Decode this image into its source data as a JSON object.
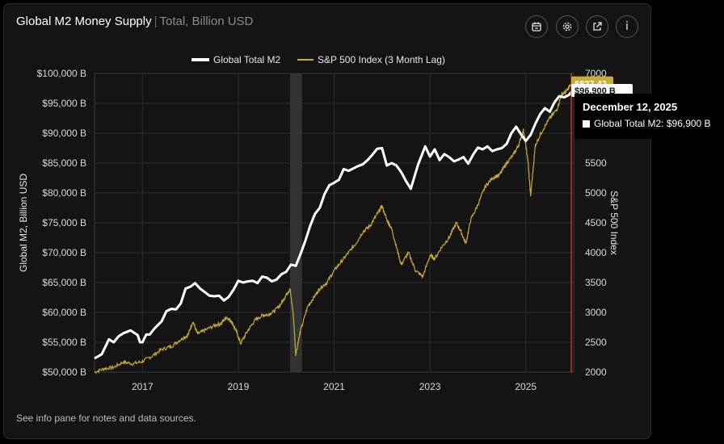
{
  "header": {
    "title": "Global M2 Money Supply",
    "separator": "|",
    "subtitle": "Total, Billion USD"
  },
  "toolbar": {
    "buttons": [
      {
        "name": "calendar-icon"
      },
      {
        "name": "gear-icon"
      },
      {
        "name": "external-link-icon"
      },
      {
        "name": "info-icon",
        "glyph": "i"
      }
    ]
  },
  "footer": {
    "note": "See info pane for notes and data sources."
  },
  "tooltip": {
    "date": "December 12, 2025",
    "series_label": "Global Total M2:",
    "value": "$96,900 B"
  },
  "colors": {
    "m2": "#ffffff",
    "sp500": "#c9ab3a",
    "highlight_band": "#333333",
    "cursor_line": "#c0392b",
    "grid": "#2e2e2e"
  },
  "chart_data": {
    "type": "line",
    "legend": {
      "placement": "top-center",
      "items": [
        "Global Total M2",
        "S&P 500 Index (3 Month Lag)"
      ]
    },
    "ylabel": "Global M2, Billion USD",
    "y2label": "S&P 500 Index",
    "xlim": [
      2016.0,
      2026.0
    ],
    "ylim": [
      50000,
      100000
    ],
    "y2lim": [
      2000,
      7000
    ],
    "xticks": [
      2017,
      2019,
      2021,
      2023,
      2025
    ],
    "yticks": [
      50000,
      55000,
      60000,
      65000,
      70000,
      75000,
      80000,
      85000,
      90000,
      95000,
      100000
    ],
    "ytick_labels": [
      "$50,000 B",
      "$55,000 B",
      "$60,000 B",
      "$65,000 B",
      "$70,000 B",
      "$75,000 B",
      "$80,000 B",
      "$85,000 B",
      "$90,000 B",
      "$95,000 B",
      "$100,000 B"
    ],
    "y2ticks": [
      2000,
      2500,
      3000,
      3500,
      4000,
      4500,
      5000,
      5500,
      6000,
      6500,
      7000
    ],
    "y2tick_labels": [
      "2000",
      "2500",
      "3000",
      "3500",
      "4000",
      "4500",
      "5000",
      "5500",
      "6000",
      "6500",
      "7000"
    ],
    "grid": true,
    "highlight_band": [
      2020.08,
      2020.33
    ],
    "cursor_x": 2025.95,
    "end_labels": {
      "sp500": "6827.42",
      "m2": "$96,900 B"
    },
    "series": [
      {
        "name": "Global Total M2",
        "axis": "left",
        "x": [
          2016.0,
          2016.15,
          2016.3,
          2016.4,
          2016.5,
          2016.6,
          2016.75,
          2016.9,
          2016.95,
          2017.0,
          2017.08,
          2017.15,
          2017.25,
          2017.4,
          2017.5,
          2017.6,
          2017.7,
          2017.8,
          2017.9,
          2018.0,
          2018.1,
          2018.2,
          2018.3,
          2018.4,
          2018.5,
          2018.6,
          2018.7,
          2018.8,
          2018.9,
          2019.0,
          2019.1,
          2019.2,
          2019.3,
          2019.4,
          2019.5,
          2019.6,
          2019.7,
          2019.8,
          2019.9,
          2020.0,
          2020.1,
          2020.2,
          2020.3,
          2020.4,
          2020.5,
          2020.6,
          2020.7,
          2020.8,
          2020.9,
          2021.0,
          2021.1,
          2021.2,
          2021.3,
          2021.4,
          2021.5,
          2021.6,
          2021.7,
          2021.8,
          2021.9,
          2022.0,
          2022.1,
          2022.2,
          2022.3,
          2022.4,
          2022.5,
          2022.6,
          2022.75,
          2022.9,
          2023.0,
          2023.1,
          2023.2,
          2023.3,
          2023.4,
          2023.5,
          2023.6,
          2023.7,
          2023.8,
          2023.9,
          2024.0,
          2024.1,
          2024.2,
          2024.3,
          2024.4,
          2024.5,
          2024.6,
          2024.7,
          2024.8,
          2024.9,
          2025.0,
          2025.1,
          2025.2,
          2025.3,
          2025.4,
          2025.5,
          2025.6,
          2025.7,
          2025.8,
          2025.9,
          2025.95
        ],
        "y": [
          52300,
          53000,
          55500,
          55000,
          56000,
          56500,
          57000,
          56200,
          55000,
          55000,
          56300,
          56300,
          57300,
          58500,
          60200,
          60600,
          60500,
          61500,
          64000,
          64300,
          64900,
          64000,
          63400,
          62800,
          62700,
          62800,
          62000,
          62600,
          63800,
          65300,
          65000,
          65200,
          65300,
          64900,
          66000,
          65800,
          65200,
          65500,
          66400,
          66800,
          68000,
          67800,
          69800,
          72000,
          74500,
          76500,
          77500,
          79800,
          81300,
          81700,
          82200,
          84000,
          83700,
          84100,
          84500,
          84800,
          85500,
          86400,
          87400,
          87500,
          84600,
          85000,
          84600,
          83500,
          82000,
          80700,
          84700,
          87800,
          86100,
          87300,
          85500,
          86500,
          86000,
          85300,
          85600,
          86000,
          84900,
          86400,
          87600,
          87300,
          87800,
          87000,
          87300,
          87500,
          88200,
          90000,
          91100,
          89800,
          88700,
          89700,
          91600,
          93200,
          94200,
          93600,
          95200,
          96200,
          96000,
          96400,
          96900
        ]
      },
      {
        "name": "S&P 500 Index (3 Month Lag)",
        "axis": "right",
        "x": [
          2016.0,
          2016.2,
          2016.4,
          2016.6,
          2016.8,
          2017.0,
          2017.2,
          2017.4,
          2017.6,
          2017.8,
          2017.95,
          2018.05,
          2018.15,
          2018.3,
          2018.5,
          2018.65,
          2018.75,
          2018.85,
          2018.95,
          2019.05,
          2019.2,
          2019.35,
          2019.5,
          2019.6,
          2019.75,
          2019.9,
          2020.0,
          2020.08,
          2020.15,
          2020.2,
          2020.3,
          2020.45,
          2020.6,
          2020.7,
          2020.85,
          2021.0,
          2021.15,
          2021.3,
          2021.45,
          2021.6,
          2021.75,
          2021.9,
          2022.0,
          2022.1,
          2022.2,
          2022.3,
          2022.4,
          2022.55,
          2022.7,
          2022.85,
          2023.0,
          2023.1,
          2023.25,
          2023.4,
          2023.55,
          2023.65,
          2023.75,
          2023.85,
          2024.0,
          2024.15,
          2024.3,
          2024.45,
          2024.6,
          2024.75,
          2024.85,
          2024.95,
          2025.0,
          2025.05,
          2025.1,
          2025.2,
          2025.35,
          2025.5,
          2025.65,
          2025.75,
          2025.85,
          2025.95
        ],
        "y": [
          2000,
          2060,
          2080,
          2170,
          2140,
          2180,
          2270,
          2380,
          2430,
          2550,
          2620,
          2850,
          2640,
          2700,
          2780,
          2820,
          2920,
          2860,
          2700,
          2480,
          2700,
          2870,
          2950,
          2960,
          3020,
          3150,
          3300,
          3390,
          2950,
          2300,
          2700,
          3100,
          3280,
          3400,
          3500,
          3700,
          3850,
          4000,
          4150,
          4350,
          4450,
          4650,
          4780,
          4550,
          4400,
          4100,
          3800,
          4000,
          3700,
          3600,
          3950,
          3900,
          4100,
          4250,
          4500,
          4350,
          4150,
          4550,
          4800,
          5100,
          5250,
          5300,
          5500,
          5650,
          5800,
          6050,
          5800,
          5500,
          4950,
          5800,
          6050,
          6250,
          6400,
          6650,
          6700,
          6830
        ]
      }
    ]
  }
}
